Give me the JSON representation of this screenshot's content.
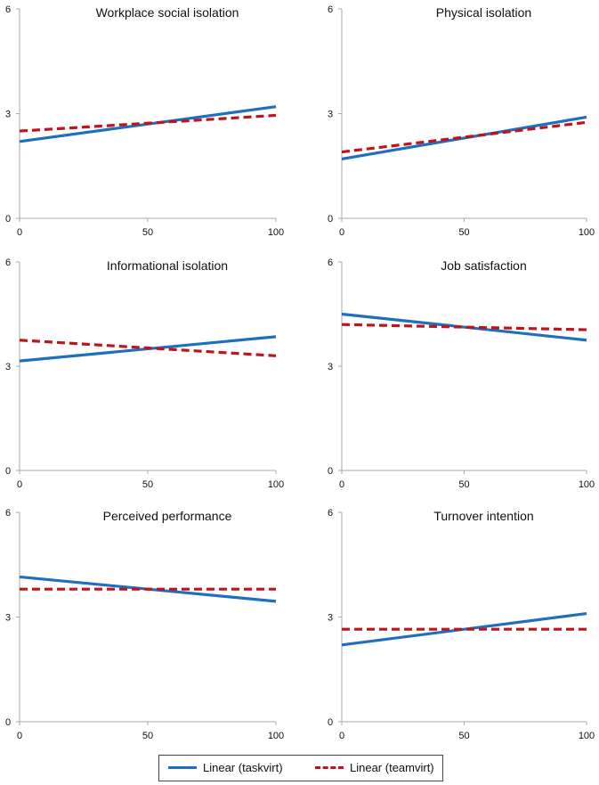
{
  "chart_data": [
    {
      "type": "line",
      "title": "Workplace social isolation",
      "x": [
        0,
        100
      ],
      "x_ticks": [
        0,
        50,
        100
      ],
      "y_ticks": [
        0,
        3,
        6
      ],
      "xlim": [
        0,
        100
      ],
      "ylim": [
        0,
        6
      ],
      "series": [
        {
          "name": "Linear (taskvirt)",
          "values": [
            2.2,
            3.2
          ]
        },
        {
          "name": "Linear (teamvirt)",
          "values": [
            2.5,
            2.95
          ]
        }
      ]
    },
    {
      "type": "line",
      "title": "Physical isolation",
      "x": [
        0,
        100
      ],
      "x_ticks": [
        0,
        50,
        100
      ],
      "y_ticks": [
        0,
        3,
        6
      ],
      "xlim": [
        0,
        100
      ],
      "ylim": [
        0,
        6
      ],
      "series": [
        {
          "name": "Linear (taskvirt)",
          "values": [
            1.7,
            2.9
          ]
        },
        {
          "name": "Linear (teamvirt)",
          "values": [
            1.9,
            2.75
          ]
        }
      ]
    },
    {
      "type": "line",
      "title": "Informational isolation",
      "x": [
        0,
        100
      ],
      "x_ticks": [
        0,
        50,
        100
      ],
      "y_ticks": [
        0,
        3,
        6
      ],
      "xlim": [
        0,
        100
      ],
      "ylim": [
        0,
        6
      ],
      "series": [
        {
          "name": "Linear (taskvirt)",
          "values": [
            3.15,
            3.85
          ]
        },
        {
          "name": "Linear (teamvirt)",
          "values": [
            3.75,
            3.3
          ]
        }
      ]
    },
    {
      "type": "line",
      "title": "Job satisfaction",
      "x": [
        0,
        100
      ],
      "x_ticks": [
        0,
        50,
        100
      ],
      "y_ticks": [
        0,
        3,
        6
      ],
      "xlim": [
        0,
        100
      ],
      "ylim": [
        0,
        6
      ],
      "series": [
        {
          "name": "Linear (taskvirt)",
          "values": [
            4.5,
            3.75
          ]
        },
        {
          "name": "Linear (teamvirt)",
          "values": [
            4.2,
            4.05
          ]
        }
      ]
    },
    {
      "type": "line",
      "title": "Perceived performance",
      "x": [
        0,
        100
      ],
      "x_ticks": [
        0,
        50,
        100
      ],
      "y_ticks": [
        0,
        3,
        6
      ],
      "xlim": [
        0,
        100
      ],
      "ylim": [
        0,
        6
      ],
      "series": [
        {
          "name": "Linear (taskvirt)",
          "values": [
            4.15,
            3.45
          ]
        },
        {
          "name": "Linear (teamvirt)",
          "values": [
            3.8,
            3.8
          ]
        }
      ]
    },
    {
      "type": "line",
      "title": "Turnover intention",
      "x": [
        0,
        100
      ],
      "x_ticks": [
        0,
        50,
        100
      ],
      "y_ticks": [
        0,
        3,
        6
      ],
      "xlim": [
        0,
        100
      ],
      "ylim": [
        0,
        6
      ],
      "series": [
        {
          "name": "Linear (taskvirt)",
          "values": [
            2.2,
            3.1
          ]
        },
        {
          "name": "Linear (teamvirt)",
          "values": [
            2.65,
            2.65
          ]
        }
      ]
    }
  ],
  "legend": {
    "items": [
      {
        "label": "Linear (taskvirt)",
        "color": "#1f6fbf",
        "style": "solid"
      },
      {
        "label": "Linear (teamvirt)",
        "color": "#c0141c",
        "style": "dashed"
      }
    ]
  },
  "colors": {
    "taskvirt": "#1f6fbf",
    "teamvirt": "#c0141c",
    "axis": "#aaaaaa",
    "text": "#111111"
  }
}
